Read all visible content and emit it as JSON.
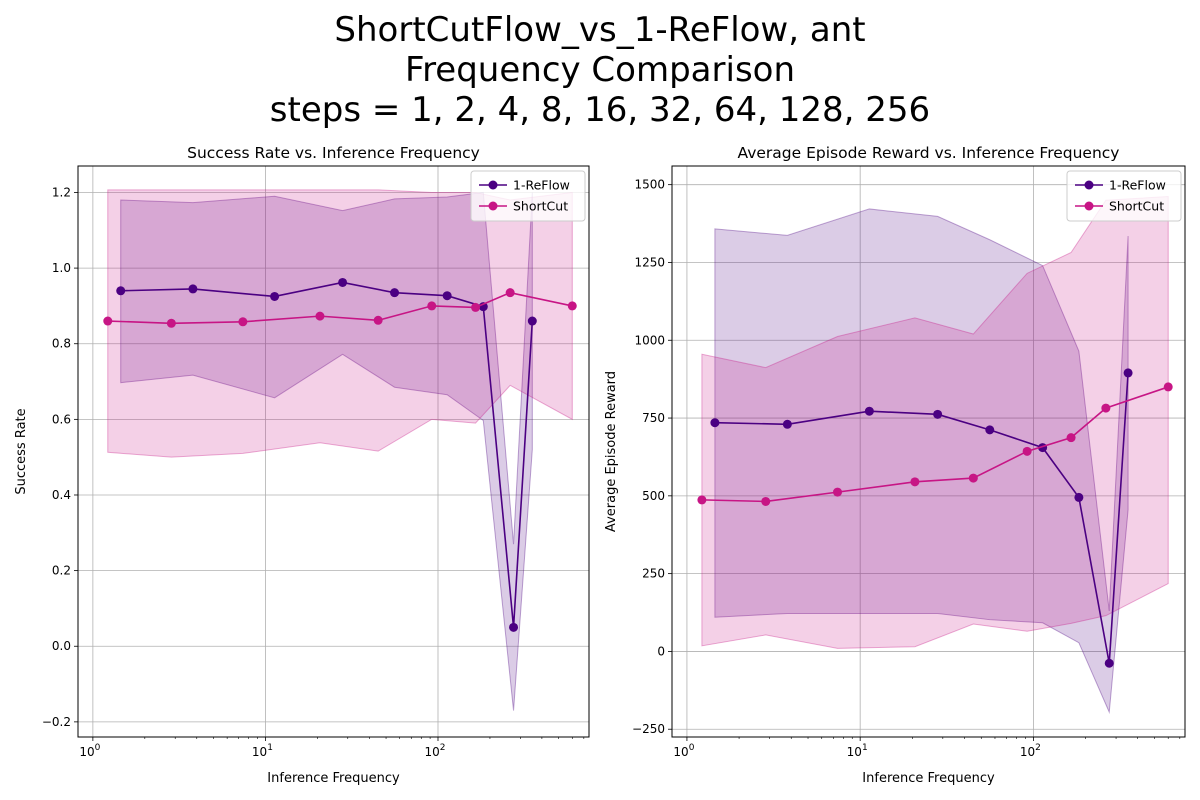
{
  "figure": {
    "title_lines": [
      "ShortCutFlow_vs_1-ReFlow, ant",
      "Frequency Comparison",
      "steps = 1, 2, 4, 8, 16, 32, 64, 128, 256"
    ]
  },
  "colors": {
    "reflow": "#4b0082",
    "shortcut": "#c71585"
  },
  "chart_data": [
    {
      "type": "line",
      "title": "Success Rate vs. Inference Frequency",
      "xlabel": "Inference Frequency",
      "ylabel": "Success Rate",
      "xscale": "log",
      "xlim": [
        0.82,
        750
      ],
      "ylim": [
        -0.24,
        1.27
      ],
      "xticks": [
        1,
        10,
        100
      ],
      "xtick_labels": [
        "10^0",
        "10^1",
        "10^2"
      ],
      "yticks": [
        -0.2,
        0.0,
        0.2,
        0.4,
        0.6,
        0.8,
        1.0,
        1.2
      ],
      "ytick_labels": [
        "−0.2",
        "0.0",
        "0.2",
        "0.4",
        "0.6",
        "0.8",
        "1.0",
        "1.2"
      ],
      "grid": true,
      "legend": "upper right",
      "series": [
        {
          "name": "1-ReFlow",
          "color": "#4b0082",
          "x": [
            1.45,
            3.8,
            11.3,
            28,
            56,
            113,
            183,
            274,
            352
          ],
          "y": [
            0.94,
            0.945,
            0.925,
            0.962,
            0.935,
            0.927,
            0.898,
            0.05,
            0.86
          ],
          "upper": [
            1.18,
            1.173,
            1.19,
            1.152,
            1.183,
            1.188,
            1.2,
            0.27,
            1.2
          ],
          "lower": [
            0.697,
            0.717,
            0.657,
            0.772,
            0.685,
            0.665,
            0.597,
            -0.17,
            0.52
          ]
        },
        {
          "name": "ShortCut",
          "color": "#c71585",
          "x": [
            1.22,
            2.85,
            7.4,
            20.7,
            45,
            92,
            165,
            262,
            600
          ],
          "y": [
            0.86,
            0.854,
            0.858,
            0.873,
            0.862,
            0.9,
            0.896,
            0.935,
            0.9
          ],
          "upper": [
            1.207,
            1.207,
            1.207,
            1.207,
            1.207,
            1.2,
            1.2,
            1.18,
            1.2
          ],
          "lower": [
            0.513,
            0.5,
            0.51,
            0.538,
            0.516,
            0.6,
            0.59,
            0.69,
            0.6
          ]
        }
      ]
    },
    {
      "type": "line",
      "title": "Average Episode Reward vs. Inference Frequency",
      "xlabel": "Inference Frequency",
      "ylabel": "Average Episode Reward",
      "xscale": "log",
      "xlim": [
        0.82,
        750
      ],
      "ylim": [
        -275,
        1560
      ],
      "xticks": [
        1,
        10,
        100
      ],
      "xtick_labels": [
        "10^0",
        "10^1",
        "10^2"
      ],
      "yticks": [
        -250,
        0,
        250,
        500,
        750,
        1000,
        1250,
        1500
      ],
      "ytick_labels": [
        "−250",
        "0",
        "250",
        "500",
        "750",
        "1000",
        "1250",
        "1500"
      ],
      "grid": true,
      "legend": "upper right",
      "series": [
        {
          "name": "1-ReFlow",
          "color": "#4b0082",
          "x": [
            1.45,
            3.8,
            11.3,
            28,
            56,
            113,
            183,
            274,
            352
          ],
          "y": [
            735,
            730,
            772,
            762,
            712,
            655,
            495,
            -38,
            895
          ],
          "upper": [
            1358,
            1337,
            1422,
            1398,
            1323,
            1240,
            965,
            130,
            1335
          ],
          "lower": [
            110,
            122,
            122,
            122,
            102,
            92,
            28,
            -195,
            455
          ]
        },
        {
          "name": "ShortCut",
          "color": "#c71585",
          "x": [
            1.22,
            2.85,
            7.4,
            20.7,
            45,
            92,
            165,
            262,
            600
          ],
          "y": [
            487,
            482,
            512,
            545,
            557,
            643,
            687,
            782,
            850
          ],
          "upper": [
            955,
            912,
            1012,
            1072,
            1020,
            1215,
            1282,
            1450,
            1462
          ],
          "lower": [
            18,
            53,
            10,
            15,
            88,
            65,
            90,
            115,
            218
          ]
        }
      ]
    }
  ]
}
